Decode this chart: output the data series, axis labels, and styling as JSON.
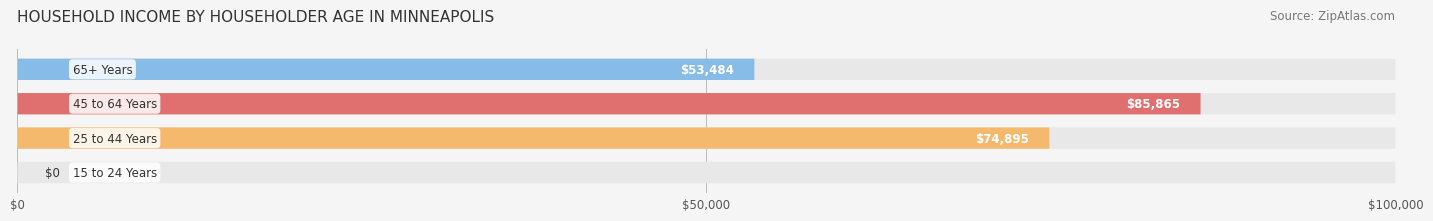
{
  "title": "HOUSEHOLD INCOME BY HOUSEHOLDER AGE IN MINNEAPOLIS",
  "source": "Source: ZipAtlas.com",
  "categories": [
    "15 to 24 Years",
    "25 to 44 Years",
    "45 to 64 Years",
    "65+ Years"
  ],
  "values": [
    0,
    74895,
    85865,
    53484
  ],
  "bar_colors": [
    "#f4a0b0",
    "#f5b96e",
    "#e07070",
    "#87bce8"
  ],
  "xlim": [
    0,
    100000
  ],
  "xticks": [
    0,
    50000,
    100000
  ],
  "xtick_labels": [
    "$0",
    "$50,000",
    "$100,000"
  ],
  "value_labels": [
    "$0",
    "$74,895",
    "$85,865",
    "$53,484"
  ],
  "bg_color": "#f5f5f5",
  "bar_bg_color": "#e8e8e8",
  "title_fontsize": 11,
  "source_fontsize": 8.5
}
